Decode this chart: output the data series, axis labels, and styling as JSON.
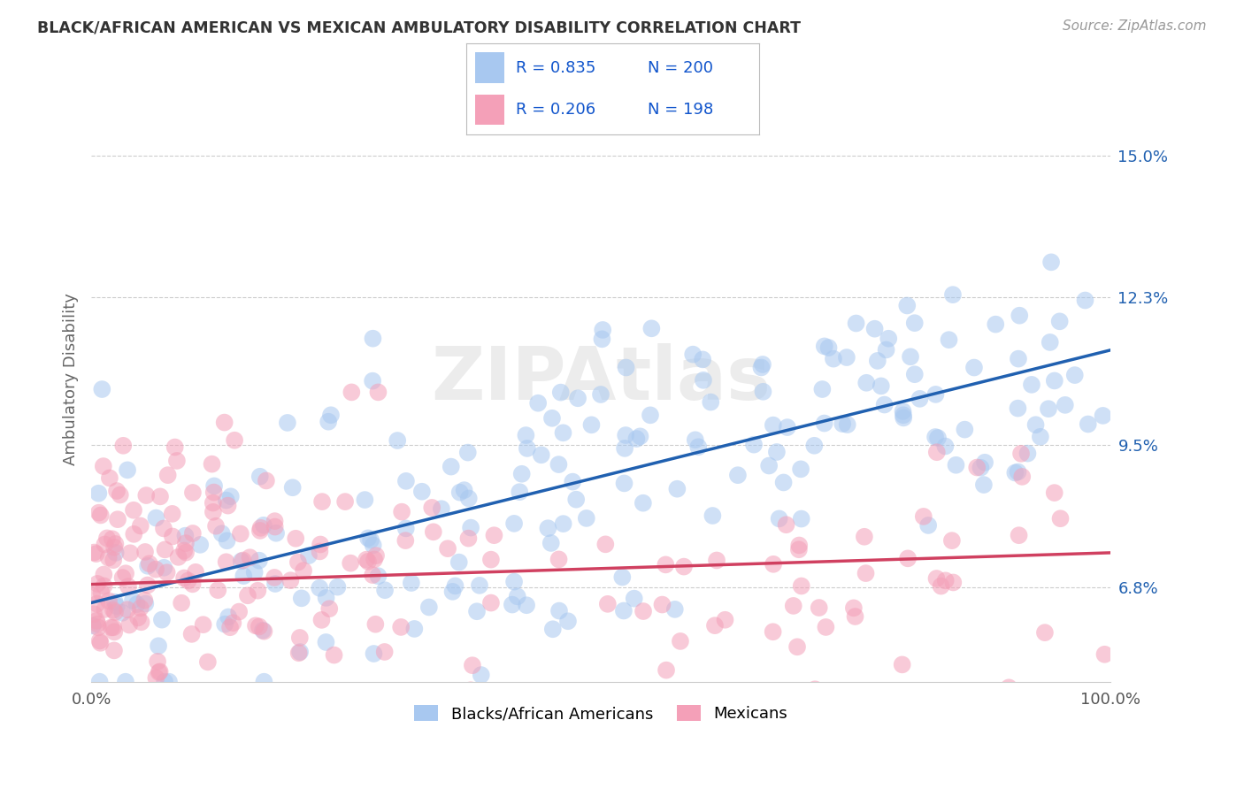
{
  "title": "BLACK/AFRICAN AMERICAN VS MEXICAN AMBULATORY DISABILITY CORRELATION CHART",
  "source": "Source: ZipAtlas.com",
  "ylabel": "Ambulatory Disability",
  "xlim": [
    0,
    100
  ],
  "ylim": [
    5.0,
    16.5
  ],
  "yticks": [
    6.8,
    9.5,
    12.3,
    15.0
  ],
  "xticklabels": [
    "0.0%",
    "100.0%"
  ],
  "yticklabels": [
    "6.8%",
    "9.5%",
    "12.3%",
    "15.0%"
  ],
  "blue_color": "#A8C8F0",
  "pink_color": "#F4A0B8",
  "blue_line_color": "#2060B0",
  "pink_line_color": "#D04060",
  "watermark": "ZIPAtlas",
  "blue_R": 0.835,
  "blue_N": 200,
  "pink_R": 0.206,
  "pink_N": 198,
  "blue_intercept": 6.5,
  "blue_slope": 0.048,
  "pink_intercept": 6.85,
  "pink_slope": 0.006,
  "background_color": "#FFFFFF",
  "grid_color": "#CCCCCC",
  "title_color": "#333333",
  "label_color": "#666666",
  "legend_R_color": "#1155CC",
  "tick_color": "#555555",
  "random_seed_blue": 7,
  "random_seed_pink": 13
}
